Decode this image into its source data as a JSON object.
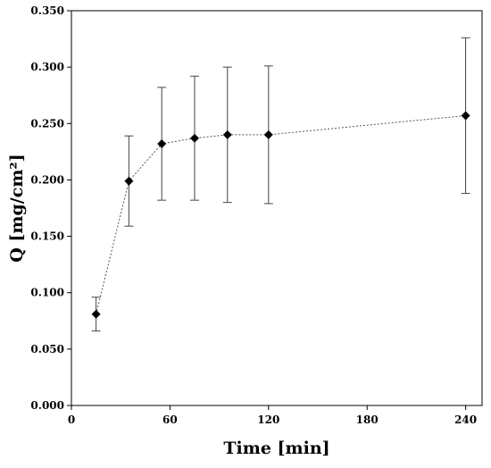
{
  "chart_data": {
    "type": "scatter",
    "xlabel": "Time [min]",
    "ylabel": "Q [mg/cm²]",
    "xlim": [
      0,
      250
    ],
    "ylim": [
      0,
      0.35
    ],
    "xticks": [
      0,
      60,
      120,
      180,
      240
    ],
    "xtick_labels": [
      "0",
      "60",
      "120",
      "180",
      "240"
    ],
    "yticks": [
      0,
      0.05,
      0.1,
      0.15,
      0.2,
      0.25,
      0.3,
      0.35
    ],
    "ytick_labels": [
      "0.000",
      "0.050",
      "0.100",
      "0.150",
      "0.200",
      "0.250",
      "0.300",
      "0.350"
    ],
    "grid": false,
    "legend": "none",
    "marker": "diamond",
    "line_style": "dotted",
    "series": [
      {
        "x": [
          15,
          35,
          55,
          75,
          95,
          120,
          240
        ],
        "y": [
          0.081,
          0.199,
          0.232,
          0.237,
          0.24,
          0.24,
          0.257
        ],
        "error": [
          0.015,
          0.04,
          0.05,
          0.055,
          0.06,
          0.061,
          0.069
        ],
        "color": "#000000"
      }
    ]
  }
}
